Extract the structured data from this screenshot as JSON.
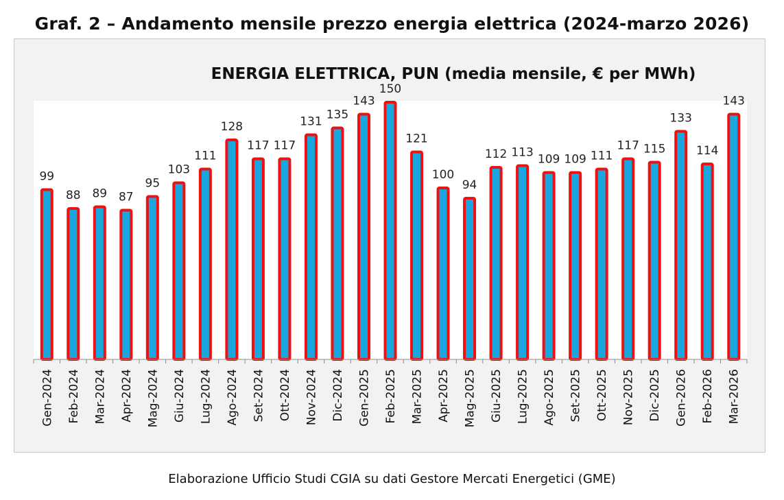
{
  "heading": "Graf. 2 – Andamento mensile prezzo energia elettrica (2024-marzo 2026)",
  "footer": "Elaborazione Ufficio Studi CGIA su dati Gestore Mercati Energetici (GME)",
  "colors": {
    "bar_fill": "#1aa7df",
    "bar_stroke": "#ee1111",
    "frame_bg": "#f2f2f2",
    "plot_bg": "#ffffff"
  },
  "chart_data": {
    "type": "bar",
    "title": "ENERGIA ELETTRICA,  PUN (media mensile, € per MWh)",
    "xlabel": "",
    "ylabel": "",
    "ylim": [
      0,
      160
    ],
    "grid": false,
    "legend": "none",
    "categories": [
      "Gen-2024",
      "Feb-2024",
      "Mar-2024",
      "Apr-2024",
      "Mag-2024",
      "Giu-2024",
      "Lug-2024",
      "Ago-2024",
      "Set-2024",
      "Ott-2024",
      "Nov-2024",
      "Dic-2024",
      "Gen-2025",
      "Feb-2025",
      "Mar-2025",
      "Apr-2025",
      "Mag-2025",
      "Giu-2025",
      "Lug-2025",
      "Ago-2025",
      "Set-2025",
      "Ott-2025",
      "Nov-2025",
      "Dic-2025",
      "Gen-2026",
      "Feb-2026",
      "Mar-2026"
    ],
    "values": [
      99,
      88,
      89,
      87,
      95,
      103,
      111,
      128,
      117,
      117,
      131,
      135,
      143,
      150,
      121,
      100,
      94,
      112,
      113,
      109,
      109,
      111,
      117,
      115,
      133,
      114,
      143
    ]
  }
}
